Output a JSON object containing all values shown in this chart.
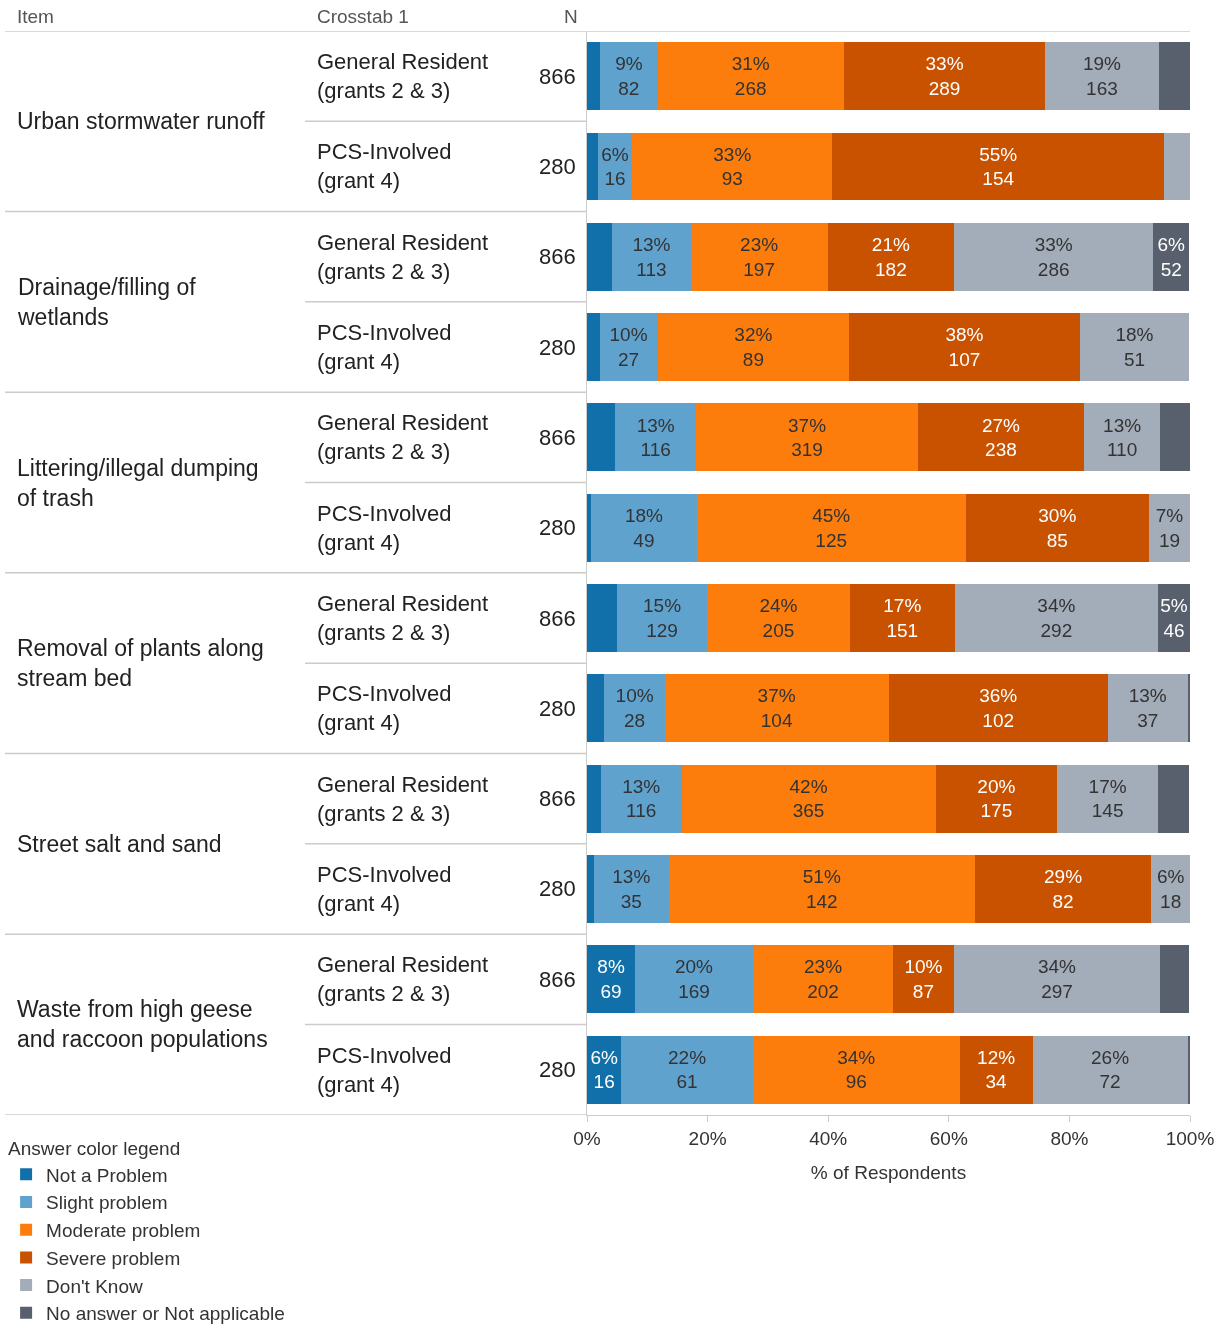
{
  "chart_data": {
    "type": "bar",
    "orientation": "horizontal",
    "stacked": true,
    "categories": [
      "General Resident\n(grants 2 & 3)",
      "PCS-Involved\n(grant 4)",
      "General Resident\n(grants 2 & 3)",
      "PCS-Involved\n(grant 4)",
      "General Resident\n(grants 2 & 3)",
      "PCS-Involved\n(grant 4)",
      "General Resident\n(grants 2 & 3)",
      "PCS-Involved\n(grant 4)",
      "General Resident\n(grants 2 & 3)",
      "PCS-Involved\n(grant 4)",
      "General Resident\n(grants 2 & 3)",
      "PCS-Involved\n(grant 4)"
    ],
    "xlabel": "% of Respondents",
    "legend_title": "Answer color legend",
    "legend": "bottom left",
    "xlim": [
      0,
      100
    ],
    "xticks": [
      {
        "value": 0,
        "label": "0%"
      },
      {
        "value": 20,
        "label": "20%"
      },
      {
        "value": 40,
        "label": "40%"
      },
      {
        "value": 60,
        "label": "60%"
      },
      {
        "value": 80,
        "label": "80%"
      },
      {
        "value": 100,
        "label": "100%"
      }
    ],
    "annotations": [
      "Item",
      "Crosstab 1",
      "N",
      "Urban stormwater runoff",
      "Drainage/filling of\nwetlands",
      "Littering/illegal dumping\nof trash",
      "Removal of plants along\nstream bed",
      "Street salt and sand",
      "Waste from high geese\nand raccoon populations",
      "866",
      "280",
      "866",
      "280",
      "866",
      "280",
      "866",
      "280",
      "866",
      "280",
      "866",
      "280"
    ],
    "series": [
      {
        "name": "Not a Problem",
        "color": "#1170aa",
        "values": [
          2.2,
          1.8,
          4.2,
          2.1,
          4.7,
          0.7,
          5.0,
          2.9,
          2.3,
          1.1,
          8.0,
          5.7
        ],
        "value_labels": [
          null,
          null,
          null,
          null,
          null,
          null,
          null,
          null,
          null,
          null,
          "8%\n69",
          "6%\n16"
        ]
      },
      {
        "name": "Slight problem",
        "color": "#5fa2ce",
        "values": [
          9.5,
          5.7,
          13.0,
          9.6,
          13.4,
          17.5,
          14.9,
          10.0,
          13.4,
          12.5,
          19.5,
          21.8
        ],
        "value_labels": [
          "9%\n82",
          "6%\n16",
          "13%\n113",
          "10%\n27",
          "13%\n116",
          "18%\n49",
          "15%\n129",
          "10%\n28",
          "13%\n116",
          "13%\n35",
          "20%\n169",
          "22%\n61"
        ]
      },
      {
        "name": "Moderate problem",
        "color": "#fc7d0b",
        "values": [
          30.9,
          33.2,
          22.7,
          31.8,
          36.8,
          44.6,
          23.7,
          37.1,
          42.1,
          50.7,
          23.3,
          34.3
        ],
        "value_labels": [
          "31%\n268",
          "33%\n93",
          "23%\n197",
          "32%\n89",
          "37%\n319",
          "45%\n125",
          "24%\n205",
          "37%\n104",
          "42%\n365",
          "51%\n142",
          "23%\n202",
          "34%\n96"
        ]
      },
      {
        "name": "Severe problem",
        "color": "#c85200",
        "values": [
          33.4,
          55.0,
          21.0,
          38.2,
          27.5,
          30.4,
          17.4,
          36.4,
          20.2,
          29.3,
          10.0,
          12.1
        ],
        "value_labels": [
          "33%\n289",
          "55%\n154",
          "21%\n182",
          "38%\n107",
          "27%\n238",
          "30%\n85",
          "17%\n151",
          "36%\n102",
          "20%\n175",
          "29%\n82",
          "10%\n87",
          "12%\n34"
        ]
      },
      {
        "name": "Don't Know",
        "color": "#a3acb9",
        "values": [
          18.8,
          4.3,
          33.0,
          18.2,
          12.7,
          6.8,
          33.7,
          13.2,
          16.7,
          6.4,
          34.3,
          25.7
        ],
        "value_labels": [
          "19%\n163",
          null,
          "33%\n286",
          "18%\n51",
          "13%\n110",
          "7%\n19",
          "34%\n292",
          "13%\n37",
          "17%\n145",
          "6%\n18",
          "34%\n297",
          "26%\n72"
        ]
      },
      {
        "name": "No answer or Not applicable",
        "color": "#57606c",
        "values": [
          5.2,
          null,
          6.0,
          null,
          4.9,
          null,
          5.3,
          0.4,
          5.2,
          null,
          4.8,
          0.4
        ],
        "value_labels": [
          null,
          null,
          "6%\n52",
          null,
          null,
          null,
          "5%\n46",
          null,
          null,
          null,
          null,
          null
        ]
      }
    ]
  }
}
